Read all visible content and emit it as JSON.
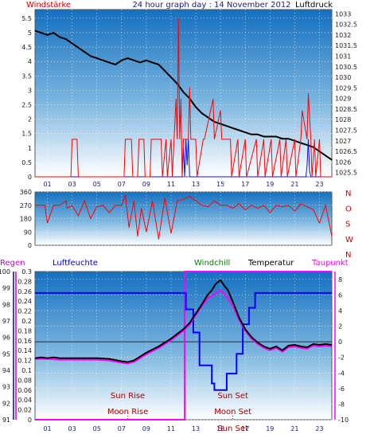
{
  "chart_data": [
    {
      "type": "line",
      "title": "24 hour graph day : 14 November 2012",
      "left_label": "Windstärke",
      "right_label": "Luftdruck",
      "x_ticks": [
        "01",
        "03",
        "05",
        "07",
        "09",
        "11",
        "13",
        "15",
        "17",
        "19",
        "21",
        "23"
      ],
      "x_range": [
        0,
        24
      ],
      "y_left_ticks": [
        "0",
        "0.5",
        "1",
        "1.5",
        "2",
        "2.5",
        "3",
        "3.5",
        "4",
        "4.5",
        "5",
        "5.5"
      ],
      "y_left_range": [
        0,
        5.8
      ],
      "y_right_ticks": [
        "1025.5",
        "1026",
        "1026.5",
        "1027",
        "1027.5",
        "1028",
        "1028.5",
        "1029",
        "1029.5",
        "1030",
        "1030.5",
        "1031",
        "1031.5",
        "1032",
        "1032.5",
        "1033"
      ],
      "y_right_range": [
        1025.3,
        1033.2
      ],
      "series": [
        {
          "role": "pressure",
          "color": "#000000",
          "x": [
            0,
            0.5,
            1,
            1.5,
            2,
            2.5,
            3,
            3.5,
            4,
            4.5,
            5,
            5.5,
            6,
            6.5,
            7,
            7.5,
            8,
            8.5,
            9,
            9.5,
            10,
            10.5,
            11,
            11.5,
            12,
            12.5,
            13,
            13.5,
            14,
            14.5,
            15,
            15.5,
            16,
            16.5,
            17,
            17.5,
            18,
            18.5,
            19,
            19.5,
            20,
            20.5,
            21,
            21.5,
            22,
            22.5,
            23,
            23.5,
            24
          ],
          "y": [
            1032.2,
            1032.1,
            1032.0,
            1032.1,
            1031.9,
            1031.8,
            1031.6,
            1031.4,
            1031.2,
            1031.0,
            1030.9,
            1030.8,
            1030.7,
            1030.6,
            1030.8,
            1030.9,
            1030.8,
            1030.7,
            1030.8,
            1030.7,
            1030.6,
            1030.3,
            1030.0,
            1029.7,
            1029.3,
            1029.0,
            1028.6,
            1028.3,
            1028.1,
            1027.9,
            1027.8,
            1027.7,
            1027.6,
            1027.5,
            1027.4,
            1027.3,
            1027.3,
            1027.2,
            1027.2,
            1027.2,
            1027.1,
            1027.1,
            1027.0,
            1026.9,
            1026.8,
            1026.7,
            1026.5,
            1026.3,
            1026.1
          ]
        },
        {
          "role": "wind_avg",
          "color": "#1010e0",
          "x": [
            0,
            11.9,
            12.0,
            12.1,
            12.2,
            12.3,
            12.4,
            12.5,
            21.9,
            22.0,
            22.1,
            22.2,
            22.3,
            24
          ],
          "y": [
            0,
            0,
            1.0,
            0,
            1.3,
            0.4,
            1.3,
            0,
            0,
            0.4,
            1.3,
            0.2,
            0,
            0
          ]
        },
        {
          "role": "wind_gust",
          "color": "#ff0000",
          "x": [
            0,
            2.9,
            3.0,
            3.4,
            3.5,
            7.2,
            7.3,
            7.8,
            7.9,
            8.3,
            8.4,
            8.8,
            8.9,
            9.3,
            9.4,
            10.2,
            10.3,
            10.6,
            10.7,
            11.0,
            11.1,
            11.4,
            11.5,
            11.6,
            11.7,
            11.8,
            11.9,
            12.0,
            12.4,
            12.5,
            12.6,
            13.0,
            13.1,
            13.6,
            13.7,
            14.4,
            14.5,
            15.0,
            15.1,
            15.8,
            15.9,
            16.4,
            16.5,
            17.0,
            17.1,
            17.9,
            18.0,
            18.5,
            18.6,
            19.1,
            19.2,
            19.8,
            19.9,
            20.3,
            20.4,
            21.0,
            21.1,
            21.5,
            21.6,
            22.0,
            22.1,
            22.3,
            22.4,
            22.6,
            22.7,
            23.0,
            23.1,
            24
          ],
          "y": [
            0,
            0,
            1.3,
            1.3,
            0,
            0,
            1.3,
            1.3,
            0,
            0,
            1.3,
            1.3,
            0,
            0,
            1.3,
            1.3,
            0,
            1.3,
            0,
            1.3,
            0,
            2.7,
            1.3,
            5.5,
            1.3,
            2.7,
            0,
            1.3,
            1.3,
            3.1,
            1.3,
            1.3,
            0,
            1.3,
            1.3,
            2.7,
            1.3,
            2.3,
            1.3,
            1.3,
            0,
            1.3,
            0,
            1.3,
            0,
            1.3,
            0,
            1.3,
            0,
            1.3,
            0,
            1.3,
            0,
            1.3,
            0,
            1.3,
            0,
            1.3,
            2.3,
            1.3,
            2.9,
            1.3,
            0,
            1.3,
            0,
            1.3,
            0,
            0
          ]
        }
      ]
    },
    {
      "type": "line",
      "title": "",
      "x_range": [
        0,
        24
      ],
      "y_left_ticks": [
        "0",
        "90",
        "180",
        "270",
        "360"
      ],
      "y_left_range": [
        0,
        360
      ],
      "y_right_ticks": [
        "N",
        "W",
        "S",
        "O",
        "N"
      ],
      "series": [
        {
          "role": "wind_direction",
          "color": "#ff0000",
          "x": [
            0,
            0.8,
            1.0,
            1.5,
            2.0,
            2.5,
            2.6,
            3.0,
            3.5,
            4.0,
            4.5,
            5.0,
            5.5,
            6.0,
            6.5,
            7.0,
            7.3,
            7.6,
            8.0,
            8.3,
            8.6,
            9.0,
            9.5,
            10.0,
            10.5,
            11.0,
            11.5,
            12.0,
            12.5,
            13.0,
            13.5,
            14.0,
            14.5,
            15.0,
            15.5,
            16.0,
            16.5,
            17.0,
            17.5,
            18.0,
            18.5,
            19.0,
            19.5,
            20.0,
            20.5,
            21.0,
            21.5,
            22.0,
            22.5,
            23.0,
            23.5,
            24
          ],
          "y": [
            270,
            270,
            150,
            270,
            270,
            300,
            250,
            270,
            200,
            300,
            180,
            260,
            270,
            220,
            270,
            270,
            340,
            120,
            300,
            60,
            250,
            90,
            300,
            40,
            320,
            80,
            300,
            310,
            330,
            300,
            270,
            260,
            300,
            270,
            270,
            250,
            280,
            240,
            270,
            250,
            270,
            220,
            270,
            260,
            270,
            230,
            280,
            260,
            240,
            150,
            270,
            60
          ]
        }
      ]
    },
    {
      "type": "line",
      "title": "",
      "labels": [
        "Regen",
        "Luftfeuchte",
        "Windchill",
        "Temperatur",
        "Taupunkt"
      ],
      "label_colors": [
        "#cc00cc",
        "#0000cc",
        "#008000",
        "#000000",
        "#ff00ff"
      ],
      "y_left_ticks": [
        "91",
        "92",
        "93",
        "94",
        "95",
        "96",
        "97",
        "98",
        "99",
        "100"
      ],
      "y_left_range": [
        91,
        100
      ],
      "y_rain_ticks": [
        "0",
        "0.02",
        "0.04",
        "0.06",
        "0.08",
        "0.1",
        "0.12",
        "0.14",
        "0.16",
        "0.18",
        "0.2",
        "0.22",
        "0.24",
        "0.26",
        "0.28",
        "0.3"
      ],
      "y_rain_range": [
        0,
        0.3
      ],
      "y_right_ticks": [
        "-10",
        "-8",
        "-6",
        "-4",
        "-2",
        "0",
        "2",
        "4",
        "6",
        "8"
      ],
      "y_right_range": [
        -10,
        9
      ],
      "x_range": [
        0,
        24
      ],
      "x_ticks": [
        "01",
        "03",
        "05",
        "07",
        "09",
        "11",
        "13",
        "15",
        "17",
        "19",
        "21",
        "23"
      ],
      "annotations": [
        {
          "text": "Sun Rise",
          "x": 7.5,
          "row": 0
        },
        {
          "text": "Moon Rise",
          "x": 7.5,
          "row": 1
        },
        {
          "text": "Sun Set",
          "x": 16.0,
          "row": 0
        },
        {
          "text": "Moon Set",
          "x": 16.0,
          "row": 1
        },
        {
          "text": "Sun Set",
          "x": 16.0,
          "row": 2
        }
      ],
      "series": [
        {
          "role": "temperature",
          "color": "#000000",
          "x": [
            0,
            0.5,
            1,
            1.5,
            2,
            3,
            4,
            5,
            6,
            7,
            7.5,
            8,
            8.5,
            9,
            9.5,
            10,
            10.5,
            11,
            11.5,
            12,
            12.5,
            13,
            13.5,
            14,
            14.3,
            14.6,
            15,
            15.3,
            15.6,
            16,
            16.5,
            17,
            17.5,
            18,
            18.5,
            19,
            19.5,
            20,
            20.5,
            21,
            21.5,
            22,
            22.5,
            23,
            23.5,
            24
          ],
          "y": [
            -2.1,
            -2.0,
            -2.1,
            -2.0,
            -2.1,
            -2.1,
            -2.1,
            -2.1,
            -2.2,
            -2.5,
            -2.6,
            -2.4,
            -1.9,
            -1.4,
            -1.0,
            -0.6,
            -0.1,
            0.4,
            1.0,
            1.6,
            2.4,
            3.6,
            4.8,
            6.1,
            6.6,
            7.4,
            7.9,
            7.2,
            6.6,
            5.1,
            3.1,
            1.6,
            0.6,
            -0.1,
            -0.6,
            -0.9,
            -0.6,
            -1.1,
            -0.5,
            -0.4,
            -0.6,
            -0.7,
            -0.3,
            -0.4,
            -0.3,
            -0.4
          ]
        },
        {
          "role": "dew_point",
          "color": "#ff00ff",
          "x": [
            0,
            0.5,
            1,
            2,
            3,
            4,
            5,
            6,
            7,
            7.5,
            8,
            8.5,
            9,
            9.5,
            10,
            10.5,
            11,
            11.5,
            12,
            12.5,
            13,
            13.5,
            14,
            14.5,
            15,
            15.5,
            16,
            16.5,
            17,
            17.5,
            18,
            18.5,
            19,
            19.5,
            20,
            20.5,
            21,
            21.5,
            22,
            22.5,
            23,
            23.5,
            24
          ],
          "y": [
            -2.2,
            -2.2,
            -2.2,
            -2.3,
            -2.3,
            -2.3,
            -2.3,
            -2.4,
            -2.7,
            -2.8,
            -2.6,
            -2.1,
            -1.6,
            -1.2,
            -0.8,
            -0.3,
            0.2,
            0.8,
            1.4,
            2.2,
            3.4,
            4.6,
            5.6,
            6.1,
            6.6,
            5.8,
            4.6,
            2.8,
            1.4,
            0.4,
            -0.3,
            -0.8,
            -1.1,
            -0.8,
            -1.3,
            -0.7,
            -0.6,
            -0.8,
            -0.9,
            -0.5,
            -0.6,
            -0.5,
            -0.6
          ]
        },
        {
          "role": "humidity",
          "color": "#0000ff",
          "x": [
            0,
            12.2,
            12.2,
            12.8,
            12.8,
            13.3,
            13.3,
            14.3,
            14.3,
            14.5,
            14.5,
            15.5,
            15.5,
            16.3,
            16.3,
            16.8,
            16.8,
            17.3,
            17.3,
            17.8,
            17.8,
            24
          ],
          "y": [
            98.7,
            98.7,
            97.7,
            97.7,
            96.3,
            96.3,
            94.3,
            94.3,
            93.2,
            93.2,
            92.8,
            92.8,
            93.8,
            93.8,
            95.0,
            95.0,
            96.8,
            96.8,
            97.8,
            97.8,
            98.7,
            98.7
          ]
        },
        {
          "role": "rain",
          "color": "#ff00ff",
          "x": [
            0,
            12.1,
            12.1,
            24
          ],
          "y": [
            0,
            0,
            0.3,
            0.3
          ]
        }
      ]
    }
  ]
}
